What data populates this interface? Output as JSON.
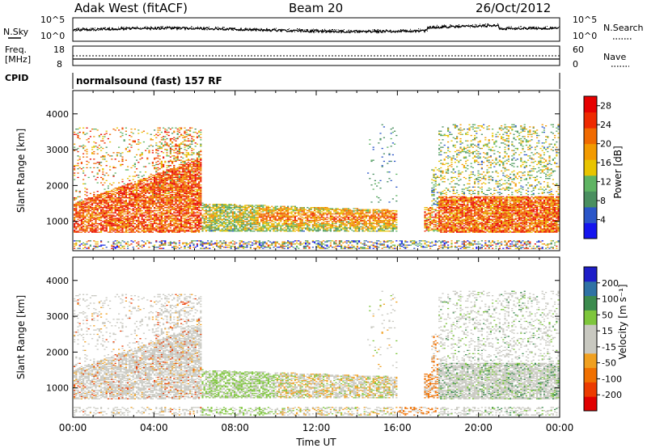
{
  "header": {
    "site": "Adak West (fitACF)",
    "beam": "Beam 20",
    "date": "26/Oct/2012"
  },
  "noise_panel": {
    "left_label": "N.Sky",
    "right_label": "N.Search",
    "left_ticks": [
      "10^5",
      "10^0"
    ],
    "right_ticks": [
      "10^5",
      "10^0"
    ]
  },
  "freq_panel": {
    "left_label_1": "Freq.",
    "left_label_2": "[MHz]",
    "left_ticks": [
      "18",
      "8"
    ],
    "right_label": "Nave",
    "right_ticks": [
      "60",
      "0"
    ]
  },
  "cpid_panel": {
    "label": "CPID",
    "text": "normalsound (fast) 157 RF"
  },
  "colors": {
    "power_scale": [
      "#1515ee",
      "#2b56c8",
      "#4a8f60",
      "#5fb463",
      "#e8c400",
      "#f29a00",
      "#f06a00",
      "#ee2a00",
      "#e60000"
    ],
    "velocity_scale": [
      "#1e1ec8",
      "#2f72a4",
      "#3c8b4e",
      "#7ec63c",
      "#c8c8c0",
      "#c8c8c0",
      "#f0a020",
      "#f07000",
      "#ec3b00",
      "#e00000"
    ]
  },
  "chart_data": [
    {
      "type": "heatmap",
      "title": "",
      "quantity": "Power",
      "ylabel": "Slant Range [km]",
      "xlabel": "",
      "x_ticks": [
        "00:00",
        "04:00",
        "08:00",
        "12:00",
        "16:00",
        "20:00",
        "00:00"
      ],
      "y_ticks": [
        "1000",
        "2000",
        "3000",
        "4000"
      ],
      "ylim": [
        180,
        4650
      ],
      "xlim_hours": [
        0,
        24
      ],
      "colorbar_label": "Power [dB]",
      "colorbar_ticks": [
        "4",
        "8",
        "12",
        "16",
        "20",
        "24",
        "28"
      ],
      "colorbar_range": [
        0,
        30
      ]
    },
    {
      "type": "heatmap",
      "title": "",
      "quantity": "Velocity",
      "ylabel": "Slant Range [km]",
      "xlabel": "Time UT",
      "x_ticks": [
        "00:00",
        "04:00",
        "08:00",
        "12:00",
        "16:00",
        "20:00",
        "00:00"
      ],
      "y_ticks": [
        "1000",
        "2000",
        "3000",
        "4000"
      ],
      "ylim": [
        180,
        4650
      ],
      "xlim_hours": [
        0,
        24
      ],
      "colorbar_label": "Velocity [m s⁻¹]",
      "colorbar_ticks": [
        "200",
        "100",
        "50",
        "15",
        "-15",
        "-50",
        "-100",
        "-200"
      ]
    }
  ]
}
